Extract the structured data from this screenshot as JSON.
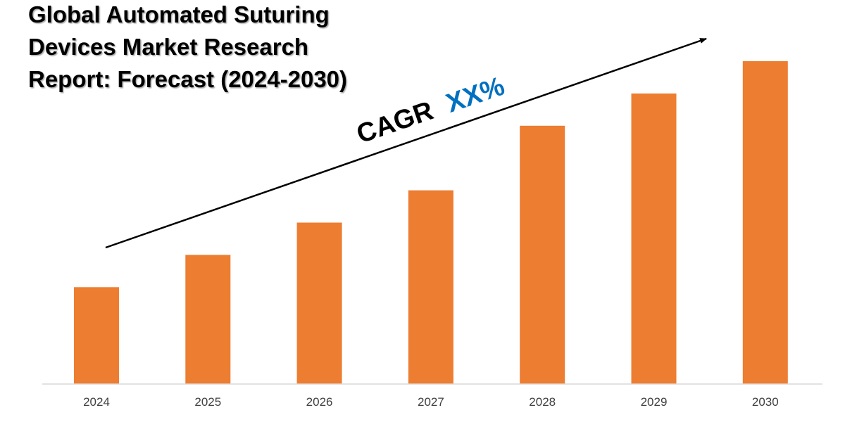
{
  "chart_data": {
    "type": "bar",
    "title_lines": [
      "Global Automated Suturing",
      "Devices Market Research",
      "Report: Forecast (2024-2030)"
    ],
    "categories": [
      "2024",
      "2025",
      "2026",
      "2027",
      "2028",
      "2029",
      "2030"
    ],
    "values": [
      30,
      40,
      50,
      60,
      80,
      90,
      100
    ],
    "ylim": [
      0,
      100
    ],
    "xlabel": "",
    "ylabel": "",
    "grid": false,
    "annotation": {
      "prefix": "CAGR",
      "value": "XX%"
    }
  },
  "colors": {
    "bar": "#ED7D31",
    "cagr_value": "#0070C0",
    "arrow": "#000000",
    "axis": "#D9D9D9"
  }
}
